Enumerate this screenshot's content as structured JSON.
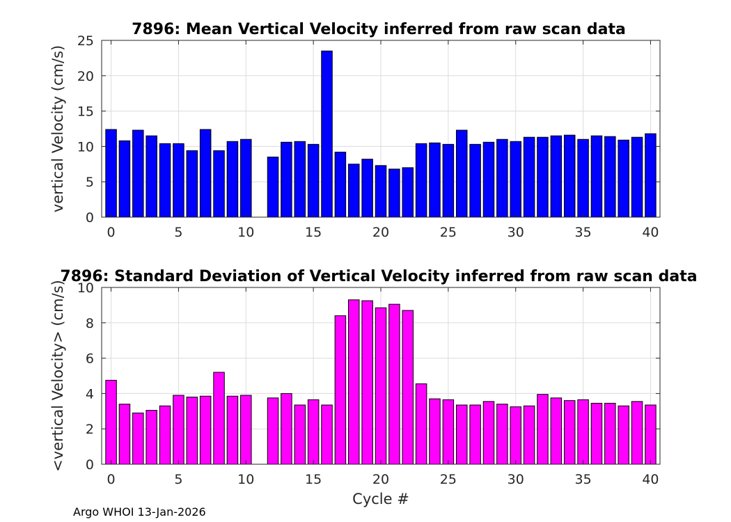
{
  "chart_data": [
    {
      "type": "bar",
      "title": "7896: Mean Vertical Velocity inferred from raw scan data",
      "xlabel": "",
      "ylabel": "vertical Velocity (cm/s)",
      "xlim": [
        -0.7,
        40.7
      ],
      "ylim": [
        0,
        25
      ],
      "xticks": [
        0,
        5,
        10,
        15,
        20,
        25,
        30,
        35,
        40
      ],
      "yticks": [
        0,
        5,
        10,
        15,
        20,
        25
      ],
      "grid": true,
      "color": "#0000ff",
      "x": [
        0,
        1,
        2,
        3,
        4,
        5,
        6,
        7,
        8,
        9,
        10,
        12,
        13,
        14,
        15,
        16,
        17,
        18,
        19,
        20,
        21,
        22,
        23,
        24,
        25,
        26,
        27,
        28,
        29,
        30,
        31,
        32,
        33,
        34,
        35,
        36,
        37,
        38,
        39,
        40
      ],
      "values": [
        12.4,
        10.8,
        12.3,
        11.5,
        10.4,
        10.4,
        9.4,
        12.4,
        9.4,
        10.7,
        11.0,
        8.5,
        10.6,
        10.7,
        10.3,
        23.5,
        9.2,
        7.5,
        8.2,
        7.3,
        6.8,
        7.0,
        10.4,
        10.5,
        10.3,
        12.3,
        10.3,
        10.6,
        11.0,
        10.7,
        11.3,
        11.3,
        11.5,
        11.6,
        11.0,
        11.5,
        11.4,
        10.9,
        11.3,
        11.8
      ]
    },
    {
      "type": "bar",
      "title": "7896: Standard Deviation of Vertical Velocity inferred from raw scan data",
      "xlabel": "Cycle #",
      "ylabel": "<vertical Velocity> (cm/s)",
      "xlim": [
        -0.7,
        40.7
      ],
      "ylim": [
        0,
        10
      ],
      "xticks": [
        0,
        5,
        10,
        15,
        20,
        25,
        30,
        35,
        40
      ],
      "yticks": [
        0,
        2,
        4,
        6,
        8,
        10
      ],
      "grid": true,
      "color": "#ff00ff",
      "x": [
        0,
        1,
        2,
        3,
        4,
        5,
        6,
        7,
        8,
        9,
        10,
        12,
        13,
        14,
        15,
        16,
        17,
        18,
        19,
        20,
        21,
        22,
        23,
        24,
        25,
        26,
        27,
        28,
        29,
        30,
        31,
        32,
        33,
        34,
        35,
        36,
        37,
        38,
        39,
        40
      ],
      "values": [
        4.75,
        3.4,
        2.9,
        3.05,
        3.3,
        3.9,
        3.8,
        3.85,
        5.2,
        3.85,
        3.9,
        3.75,
        4.0,
        3.35,
        3.65,
        3.35,
        8.4,
        9.3,
        9.25,
        8.85,
        9.05,
        8.7,
        4.55,
        3.7,
        3.65,
        3.35,
        3.35,
        3.55,
        3.4,
        3.25,
        3.3,
        3.95,
        3.75,
        3.6,
        3.65,
        3.45,
        3.45,
        3.3,
        3.55,
        3.35
      ]
    }
  ],
  "footer": "Argo WHOI 13-Jan-2026"
}
